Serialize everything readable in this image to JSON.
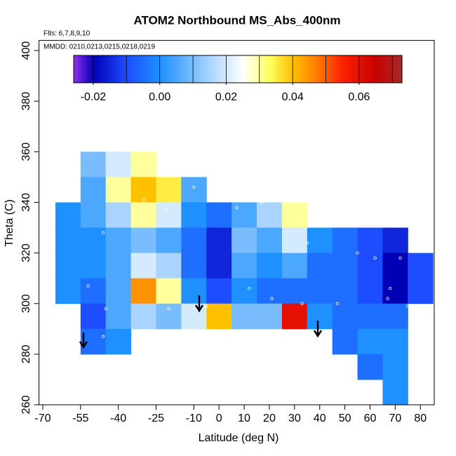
{
  "chart_data": {
    "type": "heatmap",
    "title": "ATOM2 Northbound MS_Abs_400nm",
    "annotations": [
      "Flts: 6,7,8,9,10",
      "MMDD: 0210,0213,0215,0218,0219"
    ],
    "xlabel": "Latitude (deg N)",
    "ylabel": "Theta (C)",
    "xlim": [
      -71.5,
      85.5
    ],
    "ylim": [
      260,
      404
    ],
    "xticks": [
      -70,
      -55,
      -40,
      -25,
      -10,
      0,
      10,
      20,
      30,
      40,
      50,
      60,
      70,
      80
    ],
    "yticks": [
      260,
      280,
      300,
      320,
      340,
      360,
      380,
      400
    ],
    "x": [
      -60,
      -50,
      -40,
      -30,
      -20,
      -10,
      0,
      10,
      20,
      30,
      40,
      50,
      60,
      70,
      80
    ],
    "y": [
      355,
      345,
      335,
      325,
      315,
      305,
      295,
      285,
      275,
      265
    ],
    "cell_size": [
      10,
      10
    ],
    "z": [
      [
        null,
        0.01,
        0.02,
        0.03,
        null,
        null,
        null,
        null,
        null,
        null,
        null,
        null,
        null,
        null,
        null
      ],
      [
        null,
        0.005,
        0.03,
        0.04,
        0.035,
        0.005,
        null,
        null,
        null,
        null,
        null,
        null,
        null,
        null,
        null
      ],
      [
        0.0,
        0.005,
        0.015,
        0.03,
        0.02,
        0.0,
        -0.005,
        0.005,
        0.015,
        0.03,
        null,
        null,
        null,
        null,
        null
      ],
      [
        0.0,
        0.0,
        0.005,
        0.01,
        0.005,
        -0.005,
        -0.015,
        0.01,
        0.005,
        0.02,
        0.0,
        -0.005,
        -0.01,
        -0.015,
        null
      ],
      [
        0.0,
        0.0,
        0.005,
        0.02,
        0.015,
        -0.005,
        -0.015,
        0.005,
        0.0,
        0.005,
        -0.005,
        -0.005,
        -0.01,
        -0.02,
        -0.01
      ],
      [
        0.0,
        -0.005,
        0.005,
        0.045,
        0.03,
        0.0,
        -0.01,
        0.0,
        -0.005,
        -0.005,
        -0.005,
        -0.005,
        -0.01,
        -0.02,
        -0.01
      ],
      [
        null,
        -0.01,
        0.005,
        0.015,
        0.01,
        0.02,
        0.04,
        0.01,
        0.01,
        0.06,
        0.0,
        -0.005,
        -0.005,
        -0.005,
        null
      ],
      [
        null,
        -0.005,
        0.0,
        null,
        null,
        null,
        null,
        null,
        null,
        null,
        null,
        -0.005,
        0.0,
        0.0,
        null
      ],
      [
        null,
        null,
        null,
        null,
        null,
        null,
        null,
        null,
        null,
        null,
        null,
        null,
        -0.005,
        0.0,
        null
      ],
      [
        null,
        null,
        null,
        null,
        null,
        null,
        null,
        null,
        null,
        null,
        null,
        null,
        null,
        0.0,
        null
      ]
    ],
    "points": {
      "x": [
        -52,
        -46,
        -45,
        -46,
        -30,
        -21,
        -20,
        -10,
        -5,
        7,
        12,
        17,
        21,
        33,
        35,
        47,
        55,
        62,
        68,
        72,
        67,
        75
      ],
      "y": [
        307,
        328,
        298,
        287,
        341,
        337,
        298,
        346,
        299,
        338,
        306,
        340,
        302,
        300,
        324,
        300,
        320,
        318,
        306,
        318,
        302,
        299
      ]
    },
    "colorbar": {
      "lim": [
        -0.0259,
        0.0729
      ],
      "ticks": [
        -0.02,
        {
          "value": 0,
          "label": "0.00"
        },
        0.02,
        0.04,
        0.06
      ],
      "breaks": [
        -0.02,
        -0.01,
        0,
        0.01,
        0.02,
        0.03,
        0.04,
        0.05,
        0.06,
        0.07
      ],
      "color_stops": [
        [
          -0.026,
          "#9a30f0"
        ],
        [
          -0.02,
          "#0000b4"
        ],
        [
          -0.01,
          "#1e4cff"
        ],
        [
          0.0,
          "#1e90ff"
        ],
        [
          0.015,
          "#a8d4ff"
        ],
        [
          0.025,
          "#ffffff"
        ],
        [
          0.033,
          "#ffff60"
        ],
        [
          0.04,
          "#ffc000"
        ],
        [
          0.047,
          "#ff8000"
        ],
        [
          0.055,
          "#ff2000"
        ],
        [
          0.065,
          "#c80000"
        ],
        [
          0.073,
          "#a52a2a"
        ]
      ]
    }
  }
}
